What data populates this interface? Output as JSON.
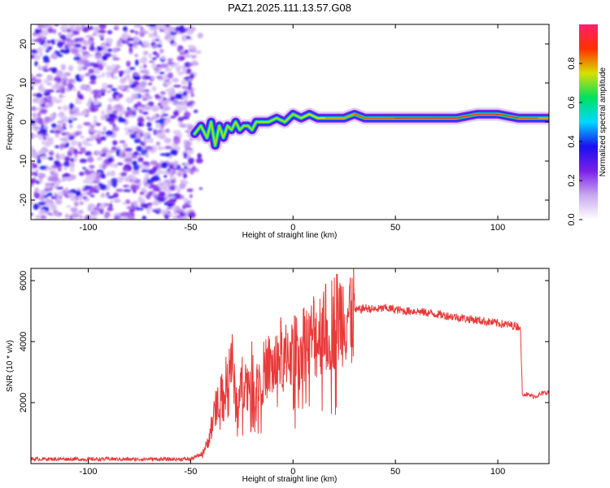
{
  "title": "PAZ1.2025.111.13.57.G08",
  "chart_data": [
    {
      "type": "heatmap",
      "xlabel": "Height of straight line (km)",
      "ylabel": "Frequency (Hz)",
      "xlim": [
        -128,
        125
      ],
      "ylim": [
        -25,
        25
      ],
      "xticks": [
        -100,
        -50,
        0,
        50,
        100
      ],
      "yticks": [
        -20,
        -10,
        0,
        10,
        20
      ],
      "colorbar": {
        "label": "Normalized spectral amplitude",
        "range": [
          0,
          1
        ],
        "ticks": [
          0.0,
          0.2,
          0.4,
          0.6,
          0.8
        ],
        "colormap": [
          "#ffffff",
          "#c8a8f0",
          "#7a1fe8",
          "#1a10f0",
          "#00d8ff",
          "#00e060",
          "#d8e000",
          "#ff3000",
          "#ff1f6e"
        ]
      },
      "noise_region_x": [
        -128,
        -48
      ],
      "signal_centerline": {
        "x": [
          -48,
          -45,
          -42,
          -40,
          -38,
          -36,
          -34,
          -32,
          -30,
          -28,
          -26,
          -24,
          -22,
          -20,
          -18,
          -15,
          -12,
          -8,
          -4,
          0,
          4,
          8,
          12,
          16,
          20,
          25,
          30,
          35,
          40,
          45,
          50,
          60,
          70,
          80,
          90,
          100,
          110,
          120,
          125
        ],
        "y": [
          -3,
          -1,
          -4,
          0,
          -6,
          -1,
          -4,
          -1,
          -2,
          0,
          -2,
          -1,
          -1,
          -2,
          0,
          0,
          0,
          1,
          0,
          2,
          1,
          2,
          1,
          1,
          1,
          1,
          2,
          1,
          1,
          1,
          1,
          1,
          1,
          1,
          2,
          2,
          1,
          1,
          1
        ],
        "amplitude": [
          0.25,
          0.3,
          0.3,
          0.35,
          0.3,
          0.35,
          0.35,
          0.4,
          0.45,
          0.45,
          0.55,
          0.5,
          0.55,
          0.6,
          0.6,
          0.65,
          0.6,
          0.7,
          0.7,
          0.75,
          0.8,
          0.8,
          0.8,
          0.85,
          0.85,
          0.85,
          0.9,
          0.9,
          0.9,
          0.9,
          0.95,
          0.95,
          0.95,
          0.95,
          0.97,
          0.95,
          0.9,
          0.85,
          0.85
        ]
      }
    },
    {
      "type": "line",
      "xlabel": "Height of straight line (km)",
      "ylabel": "SNR (10 * v/v)",
      "xlim": [
        -128,
        125
      ],
      "ylim": [
        0,
        6400
      ],
      "xticks": [
        -100,
        -50,
        0,
        50,
        100
      ],
      "yticks": [
        2000,
        4000,
        6000
      ],
      "line_color": "#e83a3a",
      "series": [
        {
          "x": [
            -128,
            -120,
            -110,
            -100,
            -90,
            -80,
            -70,
            -60,
            -50,
            -45,
            -42,
            -40,
            -38,
            -36,
            -34,
            -32,
            -30,
            -28,
            -26,
            -24,
            -22,
            -20,
            -18,
            -16,
            -14,
            -12,
            -10,
            -8,
            -6,
            -4,
            -2,
            0,
            2,
            4,
            6,
            8,
            10,
            12,
            14,
            15,
            16,
            18,
            20,
            22,
            25,
            28,
            30,
            35,
            40,
            45,
            50,
            55,
            60,
            65,
            70,
            75,
            80,
            85,
            90,
            95,
            100,
            105,
            110,
            111,
            112,
            115,
            118,
            120,
            122,
            125
          ],
          "y": [
            150,
            150,
            150,
            140,
            150,
            140,
            150,
            140,
            150,
            300,
            600,
            1200,
            1700,
            2500,
            2000,
            3000,
            3500,
            2000,
            2400,
            2800,
            2600,
            3000,
            2500,
            2900,
            3000,
            3200,
            3100,
            3300,
            3600,
            3300,
            3800,
            3500,
            3900,
            3700,
            4200,
            3800,
            4300,
            4100,
            4500,
            5000,
            4400,
            4600,
            4700,
            4800,
            4900,
            5000,
            5000,
            5100,
            5050,
            5100,
            5050,
            5000,
            5000,
            4950,
            4900,
            4850,
            4800,
            4750,
            4700,
            4650,
            4600,
            4550,
            4500,
            4500,
            2300,
            2250,
            2200,
            2250,
            2300,
            2350
          ]
        }
      ]
    }
  ]
}
